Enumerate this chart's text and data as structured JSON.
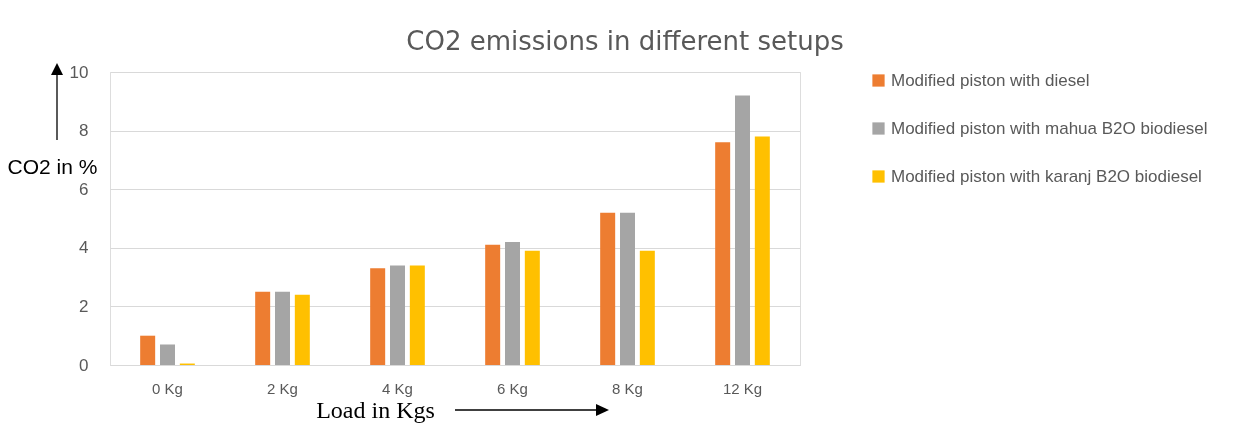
{
  "chart_data": {
    "type": "bar",
    "title": "CO2 emissions in different setups",
    "xlabel": "Load in Kgs",
    "ylabel": "CO2 in %",
    "categories": [
      "0 Kg",
      "2 Kg",
      "4 Kg",
      "6 Kg",
      "8 Kg",
      "12 Kg"
    ],
    "series": [
      {
        "name": "Modified piston with diesel",
        "color": "#ed7d31",
        "values": [
          1.0,
          2.5,
          3.3,
          4.1,
          5.2,
          7.6
        ]
      },
      {
        "name": "Modified piston with mahua B2O biodiesel",
        "color": "#a5a5a5",
        "values": [
          0.7,
          2.5,
          3.4,
          4.2,
          5.2,
          9.2
        ]
      },
      {
        "name": "Modified piston with karanj B2O biodiesel",
        "color": "#ffc000",
        "values": [
          0.05,
          2.4,
          3.4,
          3.9,
          3.9,
          7.8
        ]
      }
    ],
    "ylim": [
      0,
      10
    ],
    "yticks": [
      0,
      2,
      4,
      6,
      8,
      10
    ],
    "grid": "y",
    "legend": "right"
  }
}
